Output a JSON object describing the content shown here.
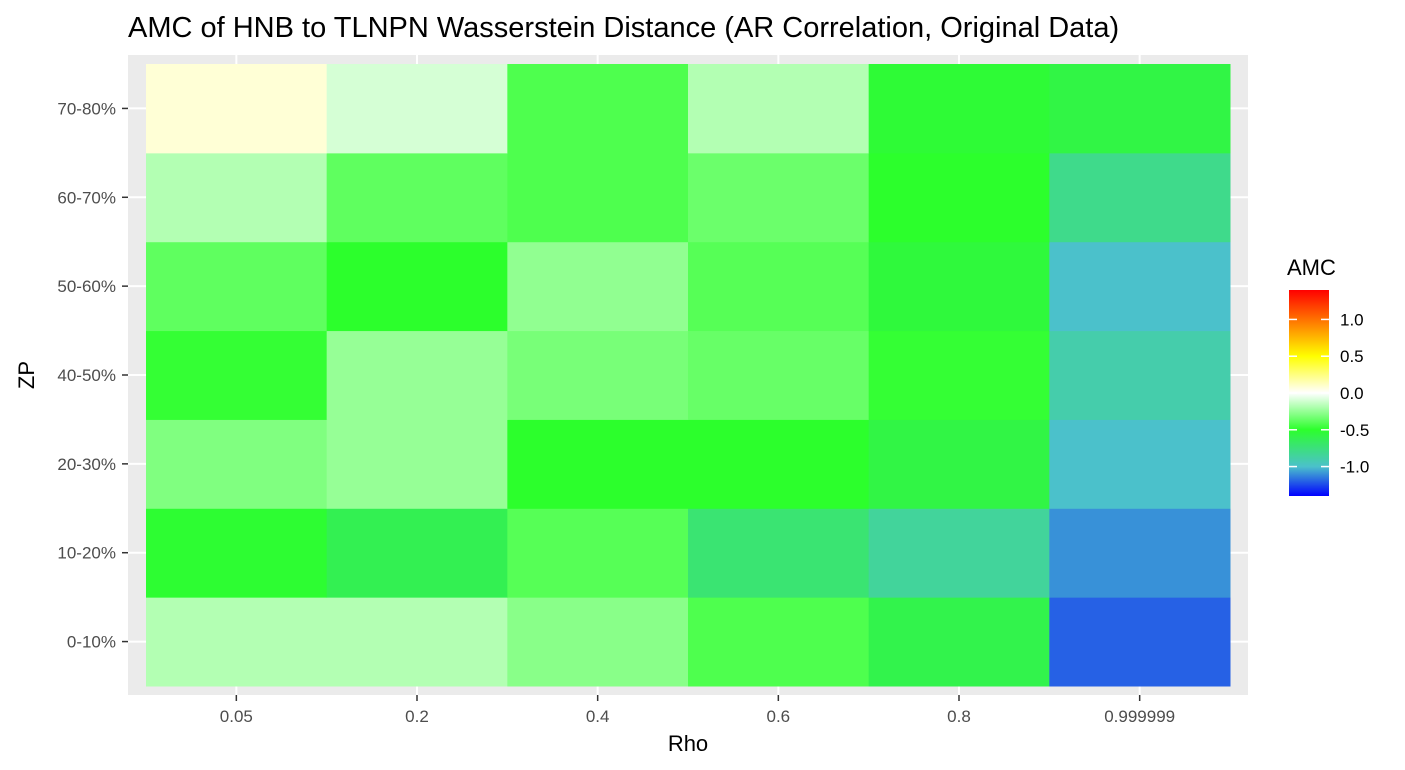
{
  "chart_data": {
    "type": "heatmap",
    "title": "AMC of HNB to TLNPN Wasserstein Distance (AR Correlation, Original Data)",
    "xlabel": "Rho",
    "ylabel": "ZP",
    "x_categories": [
      "0.05",
      "0.2",
      "0.4",
      "0.6",
      "0.8",
      "0.999999"
    ],
    "y_categories": [
      "0-10%",
      "10-20%",
      "20-30%",
      "40-50%",
      "50-60%",
      "60-70%",
      "70-80%"
    ],
    "values": [
      [
        -0.18,
        -0.18,
        -0.28,
        -0.42,
        -0.6,
        -1.2
      ],
      [
        -0.52,
        -0.62,
        -0.4,
        -0.72,
        -0.85,
        -1.1
      ],
      [
        -0.3,
        -0.25,
        -0.5,
        -0.5,
        -0.58,
        -1.0
      ],
      [
        -0.48,
        -0.25,
        -0.32,
        -0.36,
        -0.48,
        -0.9
      ],
      [
        -0.38,
        -0.5,
        -0.26,
        -0.4,
        -0.55,
        -1.0
      ],
      [
        -0.18,
        -0.38,
        -0.42,
        -0.35,
        -0.5,
        -0.8
      ],
      [
        0.08,
        -0.1,
        -0.42,
        -0.18,
        -0.53,
        -0.58
      ]
    ],
    "legend": {
      "title": "AMC",
      "ticks": [
        1.0,
        0.5,
        0.0,
        -0.5,
        -1.0
      ],
      "tick_labels": [
        "1.0",
        "0.5",
        "0.0",
        "-0.5",
        "-1.0"
      ],
      "range": [
        -1.4,
        1.4
      ],
      "placement": "right"
    },
    "color_scale": {
      "stops": [
        {
          "value": -1.4,
          "color": "#0000ff"
        },
        {
          "value": -1.0,
          "color": "#4bc1cb"
        },
        {
          "value": -0.5,
          "color": "#2cff2c"
        },
        {
          "value": 0.0,
          "color": "#ffffff"
        },
        {
          "value": 0.5,
          "color": "#ffff00"
        },
        {
          "value": 1.4,
          "color": "#ff0000"
        }
      ]
    },
    "grid": true
  }
}
